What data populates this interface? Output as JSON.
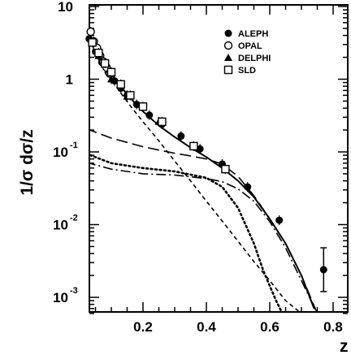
{
  "chart_data": {
    "type": "line",
    "xlabel": "z",
    "ylabel": "1/σ dσ/z",
    "xlim": [
      0.02,
      0.85
    ],
    "ylim": [
      0.0006,
      10
    ],
    "y_scale": "log",
    "grid": false,
    "legend_placement": "top-right",
    "x_ticks": [
      "0.2",
      "0.4",
      "0.6",
      "0.8"
    ],
    "y_ticks": [
      {
        "base": "10",
        "exp": "",
        "value": 10
      },
      {
        "base": "1",
        "exp": "",
        "value": 1
      },
      {
        "base": "10",
        "exp": "-1",
        "value": 0.1
      },
      {
        "base": "10",
        "exp": "-2",
        "value": 0.01
      },
      {
        "base": "10",
        "exp": "-3",
        "value": 0.001
      }
    ],
    "legend": [
      {
        "name": "ALEPH",
        "marker": "filled-circle"
      },
      {
        "name": "OPAL",
        "marker": "open-circle"
      },
      {
        "name": "DELPHI",
        "marker": "filled-triangle"
      },
      {
        "name": "SLD",
        "marker": "open-square"
      }
    ],
    "series": [
      {
        "marker": "filled-circle",
        "x": [
          0.03,
          0.05,
          0.07,
          0.09,
          0.11,
          0.13,
          0.15,
          0.18,
          0.22,
          0.26,
          0.32,
          0.38,
          0.45,
          0.53,
          0.63
        ],
        "y": [
          3.6,
          2.4,
          1.7,
          1.25,
          0.95,
          0.75,
          0.6,
          0.45,
          0.32,
          0.24,
          0.165,
          0.11,
          0.068,
          0.033,
          0.0115
        ]
      },
      {
        "marker": "open-circle",
        "x": [
          0.035,
          0.045,
          0.055,
          0.065,
          0.075,
          0.085,
          0.095
        ],
        "y": [
          4.5,
          3.3,
          2.7,
          2.1,
          1.75,
          1.45,
          1.2
        ]
      },
      {
        "marker": "filled-triangle",
        "x": [
          0.06,
          0.1,
          0.15,
          0.25,
          0.36
        ],
        "y": [
          2.1,
          1.0,
          0.58,
          0.26,
          0.12
        ]
      },
      {
        "marker": "open-square",
        "x": [
          0.04,
          0.06,
          0.08,
          0.1,
          0.13,
          0.16,
          0.2,
          0.26,
          0.36,
          0.46
        ],
        "y": [
          3.2,
          2.3,
          1.65,
          1.25,
          0.85,
          0.6,
          0.42,
          0.26,
          0.12,
          0.058
        ]
      }
    ],
    "curves": [
      {
        "style": "solid",
        "x": [
          0.02,
          0.05,
          0.08,
          0.12,
          0.16,
          0.2,
          0.25,
          0.3,
          0.35,
          0.4,
          0.45,
          0.5,
          0.55,
          0.6,
          0.65,
          0.7,
          0.74
        ],
        "y": [
          4.9,
          2.7,
          1.55,
          0.9,
          0.55,
          0.36,
          0.23,
          0.16,
          0.115,
          0.085,
          0.06,
          0.04,
          0.024,
          0.012,
          0.0055,
          0.002,
          0.0007
        ]
      },
      {
        "style": "dashed",
        "x": [
          0.02,
          0.05,
          0.08,
          0.12,
          0.16,
          0.2,
          0.25,
          0.3,
          0.35,
          0.4,
          0.45,
          0.5,
          0.55,
          0.6,
          0.65,
          0.7,
          0.73
        ],
        "y": [
          4.9,
          2.5,
          1.35,
          0.74,
          0.43,
          0.26,
          0.142,
          0.075,
          0.04,
          0.021,
          0.0112,
          0.0059,
          0.0031,
          0.0017,
          0.0009,
          0.0006,
          0.0006
        ]
      },
      {
        "style": "long-dashed",
        "x": [
          0.02,
          0.06,
          0.1,
          0.15,
          0.2,
          0.25,
          0.3,
          0.35,
          0.4,
          0.45,
          0.5,
          0.55,
          0.6,
          0.65,
          0.7,
          0.75
        ],
        "y": [
          0.21,
          0.18,
          0.155,
          0.135,
          0.118,
          0.106,
          0.096,
          0.088,
          0.08,
          0.068,
          0.046,
          0.025,
          0.012,
          0.0055,
          0.002,
          0.0006
        ]
      },
      {
        "style": "dotted",
        "x": [
          0.02,
          0.1,
          0.2,
          0.3,
          0.4,
          0.45,
          0.5,
          0.55,
          0.58,
          0.62,
          0.64
        ],
        "y": [
          0.095,
          0.07,
          0.06,
          0.054,
          0.044,
          0.033,
          0.017,
          0.0055,
          0.0023,
          0.0009,
          0.0006
        ]
      },
      {
        "style": "dash-dot",
        "x": [
          0.02,
          0.1,
          0.2,
          0.3,
          0.4,
          0.45,
          0.5,
          0.55,
          0.6,
          0.65,
          0.7,
          0.75
        ],
        "y": [
          0.072,
          0.058,
          0.05,
          0.048,
          0.043,
          0.039,
          0.031,
          0.021,
          0.011,
          0.0048,
          0.0017,
          0.0006
        ]
      }
    ],
    "error_marker": {
      "x": 0.77,
      "y": 0.0024,
      "y_low": 0.0012,
      "y_high": 0.0048
    }
  }
}
